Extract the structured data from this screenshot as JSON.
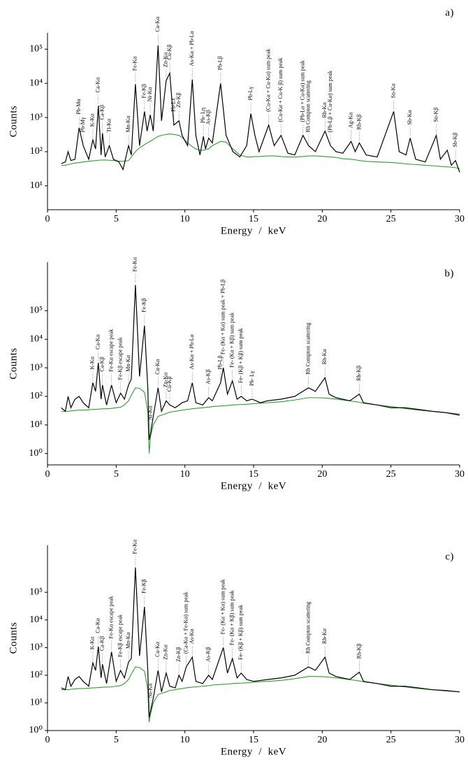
{
  "chart_data": [
    {
      "type": "line",
      "panel_label": "a)",
      "xlabel": "Energy  /  keV",
      "ylabel": "Counts",
      "log_y": true,
      "xlim": [
        0,
        30
      ],
      "xticks": [
        0,
        5,
        10,
        15,
        20,
        25,
        30
      ],
      "ylim": [
        2,
        300000
      ],
      "yticks": [
        {
          "value": 10,
          "label": "10¹"
        },
        {
          "value": 100,
          "label": "10²"
        },
        {
          "value": 1000,
          "label": "10³"
        },
        {
          "value": 10000,
          "label": "10⁴"
        },
        {
          "value": 100000,
          "label": "10⁵"
        }
      ],
      "x": [
        1.0,
        1.3,
        1.5,
        1.7,
        2.0,
        2.3,
        2.6,
        3.0,
        3.3,
        3.5,
        3.7,
        3.9,
        4.0,
        4.2,
        4.5,
        4.8,
        5.2,
        5.5,
        5.9,
        6.1,
        6.4,
        6.7,
        7.06,
        7.25,
        7.48,
        7.7,
        8.05,
        8.3,
        8.64,
        8.9,
        9.2,
        9.57,
        9.8,
        10.2,
        10.54,
        10.8,
        11.1,
        11.35,
        11.5,
        11.73,
        12.0,
        12.6,
        13.0,
        13.5,
        14.0,
        14.5,
        14.8,
        15.1,
        15.4,
        16.1,
        16.5,
        17.0,
        17.5,
        18.0,
        18.6,
        19.0,
        19.5,
        20.2,
        20.6,
        21.0,
        21.5,
        22.1,
        22.4,
        22.7,
        23.2,
        24.0,
        25.2,
        25.6,
        26.1,
        26.4,
        26.8,
        27.5,
        28.3,
        28.6,
        29.1,
        29.4,
        29.7,
        30.0
      ],
      "series": [
        {
          "color": "#000000",
          "values": [
            45,
            50,
            100,
            55,
            60,
            500,
            150,
            60,
            220,
            120,
            2200,
            80,
            350,
            70,
            150,
            60,
            50,
            30,
            150,
            80,
            9500,
            150,
            1500,
            400,
            1200,
            400,
            130000,
            800,
            12000,
            20000,
            600,
            800,
            300,
            150,
            13000,
            300,
            80,
            280,
            120,
            250,
            180,
            10000,
            300,
            100,
            70,
            150,
            1300,
            300,
            100,
            600,
            150,
            300,
            90,
            80,
            300,
            150,
            100,
            400,
            150,
            100,
            90,
            200,
            100,
            180,
            80,
            70,
            1500,
            100,
            80,
            250,
            60,
            50,
            300,
            60,
            110,
            40,
            55,
            25
          ]
        },
        {
          "color": "#2ca02c",
          "values": [
            40,
            40,
            42,
            44,
            46,
            48,
            50,
            52,
            54,
            55,
            56,
            57,
            57,
            57,
            56,
            55,
            53,
            52,
            55,
            70,
            100,
            130,
            160,
            180,
            200,
            230,
            280,
            300,
            320,
            330,
            320,
            300,
            260,
            180,
            140,
            120,
            110,
            110,
            115,
            120,
            150,
            200,
            190,
            120,
            80,
            70,
            70,
            72,
            72,
            75,
            75,
            72,
            70,
            70,
            72,
            75,
            75,
            72,
            70,
            68,
            62,
            60,
            58,
            55,
            52,
            50,
            48,
            46,
            44,
            43,
            42,
            40,
            38,
            37,
            36,
            35,
            34,
            32
          ]
        }
      ],
      "annotations": [
        {
          "text": "Pb-Mα",
          "x": 2.3
        },
        {
          "text": "Pb-Mγ",
          "x": 2.6
        },
        {
          "text": "K-Kα",
          "x": 3.3
        },
        {
          "text": "Ca-Kα",
          "x": 3.7
        },
        {
          "text": "Ca-Kβ",
          "x": 4.0
        },
        {
          "text": "Ti-Kα",
          "x": 4.5
        },
        {
          "text": "Mn-Kα",
          "x": 5.9
        },
        {
          "text": "Fe-Kα",
          "x": 6.4
        },
        {
          "text": "Fe-Kβ",
          "x": 7.06
        },
        {
          "text": "Ni-Kα",
          "x": 7.48
        },
        {
          "text": "Cu-Kα",
          "x": 8.05
        },
        {
          "text": "Zn-Kα",
          "x": 8.64
        },
        {
          "text": "Cu-Kβ",
          "x": 8.9
        },
        {
          "text": "Pb-Lℓ",
          "x": 9.2
        },
        {
          "text": "Zn-Kβ",
          "x": 9.57
        },
        {
          "text": "As-Kα + Pb-Lα",
          "x": 10.54
        },
        {
          "text": "Pb- Lη",
          "x": 11.35
        },
        {
          "text": "As-Kβ",
          "x": 11.73
        },
        {
          "text": "Pb-Lβ",
          "x": 12.6
        },
        {
          "text": "Pb-Lγ",
          "x": 14.8
        },
        {
          "text": "(Cu-Kα + Cu-Kα)  sum peak",
          "x": 16.1
        },
        {
          "text": "(Cu-Kα + Cu-K β)  sum peak",
          "x": 17.0
        },
        {
          "text": "(Pb-Lα + Cu-Kα) sum peak",
          "x": 18.6
        },
        {
          "text": "Rh Compton scattering",
          "x": 19.0
        },
        {
          "text": "Rh-Kα",
          "x": 20.2
        },
        {
          "text": "(Pb-Lβ + Cu-Kα) sum peak",
          "x": 20.6
        },
        {
          "text": "Ag-Kα",
          "x": 22.1
        },
        {
          "text": "Rh-Kβ",
          "x": 22.7
        },
        {
          "text": "Sn-Kα",
          "x": 25.2
        },
        {
          "text": "Sb-Kα",
          "x": 26.4
        },
        {
          "text": "Sn-Kβ",
          "x": 28.3
        },
        {
          "text": "Sb-Kβ",
          "x": 29.7
        }
      ]
    },
    {
      "type": "line",
      "panel_label": "b)",
      "xlabel": "Energy  /  keV",
      "ylabel": "Counts",
      "log_y": true,
      "xlim": [
        0,
        30
      ],
      "xticks": [
        0,
        5,
        10,
        15,
        20,
        25,
        30
      ],
      "ylim": [
        0.4,
        5000000
      ],
      "yticks": [
        {
          "value": 1,
          "label": "10⁰"
        },
        {
          "value": 10,
          "label": "10¹"
        },
        {
          "value": 100,
          "label": "10²"
        },
        {
          "value": 1000,
          "label": "10³"
        },
        {
          "value": 10000,
          "label": "10⁴"
        },
        {
          "value": 100000,
          "label": "10⁵"
        }
      ],
      "x": [
        1.0,
        1.3,
        1.5,
        1.7,
        2.0,
        2.3,
        2.6,
        3.0,
        3.3,
        3.5,
        3.7,
        3.9,
        4.0,
        4.3,
        4.66,
        5.0,
        5.32,
        5.6,
        5.9,
        6.1,
        6.4,
        6.7,
        7.06,
        7.3,
        7.4,
        7.5,
        7.7,
        8.05,
        8.3,
        8.64,
        8.9,
        9.3,
        9.8,
        10.2,
        10.54,
        10.8,
        11.3,
        11.73,
        12.0,
        12.6,
        12.8,
        13.1,
        13.46,
        13.8,
        14.1,
        14.5,
        14.9,
        15.5,
        16.0,
        17.0,
        18.0,
        19.0,
        19.5,
        20.2,
        20.5,
        21.0,
        22.0,
        22.7,
        23.0,
        24.0,
        25.0,
        26.0,
        27.0,
        28.0,
        29.0,
        30.0
      ],
      "series": [
        {
          "color": "#000000",
          "values": [
            40,
            30,
            100,
            40,
            80,
            100,
            60,
            40,
            300,
            150,
            1500,
            80,
            250,
            50,
            250,
            60,
            130,
            80,
            250,
            400,
            800000,
            500,
            30000,
            200,
            3,
            5,
            20,
            200,
            30,
            70,
            50,
            40,
            60,
            70,
            300,
            60,
            50,
            90,
            70,
            300,
            1000,
            120,
            350,
            80,
            100,
            70,
            80,
            60,
            70,
            80,
            100,
            200,
            150,
            450,
            120,
            90,
            70,
            120,
            60,
            50,
            40,
            40,
            35,
            30,
            27,
            22
          ]
        },
        {
          "color": "#2ca02c",
          "values": [
            30,
            30,
            30,
            31,
            32,
            33,
            33,
            34,
            35,
            35,
            36,
            36,
            37,
            37,
            38,
            40,
            42,
            50,
            70,
            110,
            200,
            190,
            140,
            30,
            1,
            4,
            10,
            20,
            22,
            25,
            28,
            30,
            33,
            35,
            37,
            38,
            40,
            42,
            44,
            46,
            47,
            48,
            50,
            51,
            52,
            53,
            55,
            58,
            60,
            65,
            75,
            90,
            90,
            88,
            85,
            80,
            70,
            62,
            58,
            50,
            44,
            38,
            33,
            30,
            27,
            24
          ]
        }
      ],
      "annotations": [
        {
          "text": "K-Kα",
          "x": 3.3
        },
        {
          "text": "Ca-Kα",
          "x": 3.7
        },
        {
          "text": "Ca-Kβ",
          "x": 4.0
        },
        {
          "text": "Fe-Kα escape peak",
          "x": 4.66
        },
        {
          "text": "Fe-Kβ escape peak",
          "x": 5.32
        },
        {
          "text": "Mn-Kα",
          "x": 5.9
        },
        {
          "text": "Fe-Kα",
          "x": 6.4
        },
        {
          "text": "Fe-Kβ",
          "x": 7.06
        },
        {
          "text": "Ni-Kα",
          "x": 7.5
        },
        {
          "text": "Cu-Kα",
          "x": 8.05
        },
        {
          "text": "Zn-Kα",
          "x": 8.64
        },
        {
          "text": "Cu-Kβ",
          "x": 8.9
        },
        {
          "text": "As-Kα + Pb-Lα",
          "x": 10.54
        },
        {
          "text": "As-Kβ",
          "x": 11.73
        },
        {
          "text": "Pb-Lβ",
          "x": 12.6
        },
        {
          "text": "Fe- (Kα + Kα) sum peak + Pb-Lβ",
          "x": 12.8
        },
        {
          "text": "Fe- (Kα + Kβ) sum peak",
          "x": 13.46
        },
        {
          "text": "Fe- (Kβ + Kβ) sum peak",
          "x": 14.1
        },
        {
          "text": "Pb- Lγ",
          "x": 14.9
        },
        {
          "text": "Rh Compton scattering",
          "x": 19.0
        },
        {
          "text": "Rh-Kα",
          "x": 20.2
        },
        {
          "text": "Rh-Kβ",
          "x": 22.7
        }
      ]
    },
    {
      "type": "line",
      "panel_label": "c)",
      "xlabel": "Energy  /  keV",
      "ylabel": "Counts",
      "log_y": true,
      "xlim": [
        0,
        30
      ],
      "xticks": [
        0,
        5,
        10,
        15,
        20,
        25,
        30
      ],
      "ylim": [
        1,
        5000000
      ],
      "yticks": [
        {
          "value": 1,
          "label": "10⁰"
        },
        {
          "value": 10,
          "label": "10¹"
        },
        {
          "value": 100,
          "label": "10²"
        },
        {
          "value": 1000,
          "label": "10³"
        },
        {
          "value": 10000,
          "label": "10⁴"
        },
        {
          "value": 100000,
          "label": "10⁵"
        }
      ],
      "x": [
        1.0,
        1.3,
        1.5,
        1.7,
        2.0,
        2.3,
        2.6,
        3.0,
        3.3,
        3.5,
        3.7,
        3.9,
        4.0,
        4.3,
        4.66,
        5.0,
        5.32,
        5.6,
        5.9,
        6.1,
        6.4,
        6.7,
        7.06,
        7.3,
        7.4,
        7.5,
        7.7,
        8.05,
        8.3,
        8.64,
        8.9,
        9.3,
        9.57,
        9.8,
        10.1,
        10.54,
        10.8,
        11.3,
        11.73,
        12.0,
        12.8,
        13.1,
        13.46,
        13.8,
        14.1,
        14.5,
        15.0,
        16.0,
        17.0,
        18.0,
        19.0,
        19.5,
        20.2,
        20.5,
        21.0,
        22.0,
        22.7,
        23.0,
        24.0,
        25.0,
        26.0,
        27.0,
        28.0,
        29.0,
        30.0
      ],
      "series": [
        {
          "color": "#000000",
          "values": [
            35,
            30,
            90,
            40,
            70,
            90,
            60,
            40,
            280,
            150,
            1100,
            80,
            250,
            50,
            700,
            60,
            150,
            80,
            300,
            400,
            800000,
            500,
            30000,
            150,
            3,
            5,
            15,
            150,
            25,
            120,
            40,
            35,
            100,
            60,
            200,
            450,
            60,
            50,
            100,
            70,
            1000,
            120,
            400,
            80,
            120,
            70,
            60,
            70,
            80,
            100,
            200,
            150,
            450,
            120,
            90,
            70,
            130,
            60,
            50,
            40,
            40,
            35,
            30,
            28,
            25
          ]
        },
        {
          "color": "#2ca02c",
          "values": [
            30,
            30,
            30,
            31,
            32,
            33,
            33,
            34,
            35,
            35,
            36,
            36,
            37,
            37,
            38,
            40,
            42,
            50,
            70,
            110,
            200,
            190,
            140,
            30,
            2,
            4,
            10,
            20,
            22,
            25,
            28,
            30,
            32,
            33,
            35,
            37,
            38,
            40,
            42,
            44,
            47,
            48,
            50,
            51,
            52,
            53,
            56,
            60,
            65,
            75,
            90,
            90,
            88,
            85,
            80,
            70,
            62,
            58,
            50,
            44,
            38,
            33,
            30,
            27,
            25
          ]
        }
      ],
      "annotations": [
        {
          "text": "K-Kα",
          "x": 3.3
        },
        {
          "text": "Ca-Kα",
          "x": 3.7
        },
        {
          "text": "Ca-Kβ",
          "x": 4.0
        },
        {
          "text": "Fe-Kα escape peak",
          "x": 4.66
        },
        {
          "text": "Fe-Kβ escape peak",
          "x": 5.32
        },
        {
          "text": "Mn-Kα",
          "x": 5.9
        },
        {
          "text": "Fe-Kα",
          "x": 6.4
        },
        {
          "text": "Fe-Kβ",
          "x": 7.06
        },
        {
          "text": "Ni-Kα",
          "x": 7.5
        },
        {
          "text": "Cu-Kα",
          "x": 8.05
        },
        {
          "text": "Zn-Kα",
          "x": 8.64
        },
        {
          "text": "Zn-Kβ",
          "x": 9.57
        },
        {
          "text": "(Ca-Kα + Fe-Kα) sum peak",
          "x": 10.1
        },
        {
          "text": "As-Kα",
          "x": 10.54
        },
        {
          "text": "As-Kβ",
          "x": 11.73
        },
        {
          "text": "Fe- (Kα + Kα) sum peak",
          "x": 12.8
        },
        {
          "text": "Fe- (Kα + Kβ) sum peak",
          "x": 13.46
        },
        {
          "text": "Fe- (Kβ + Kβ) sum peak",
          "x": 14.1
        },
        {
          "text": "Rh Compton scattering",
          "x": 19.0
        },
        {
          "text": "Rh-Kα",
          "x": 20.2
        },
        {
          "text": "Rh-Kβ",
          "x": 22.7
        }
      ]
    }
  ]
}
